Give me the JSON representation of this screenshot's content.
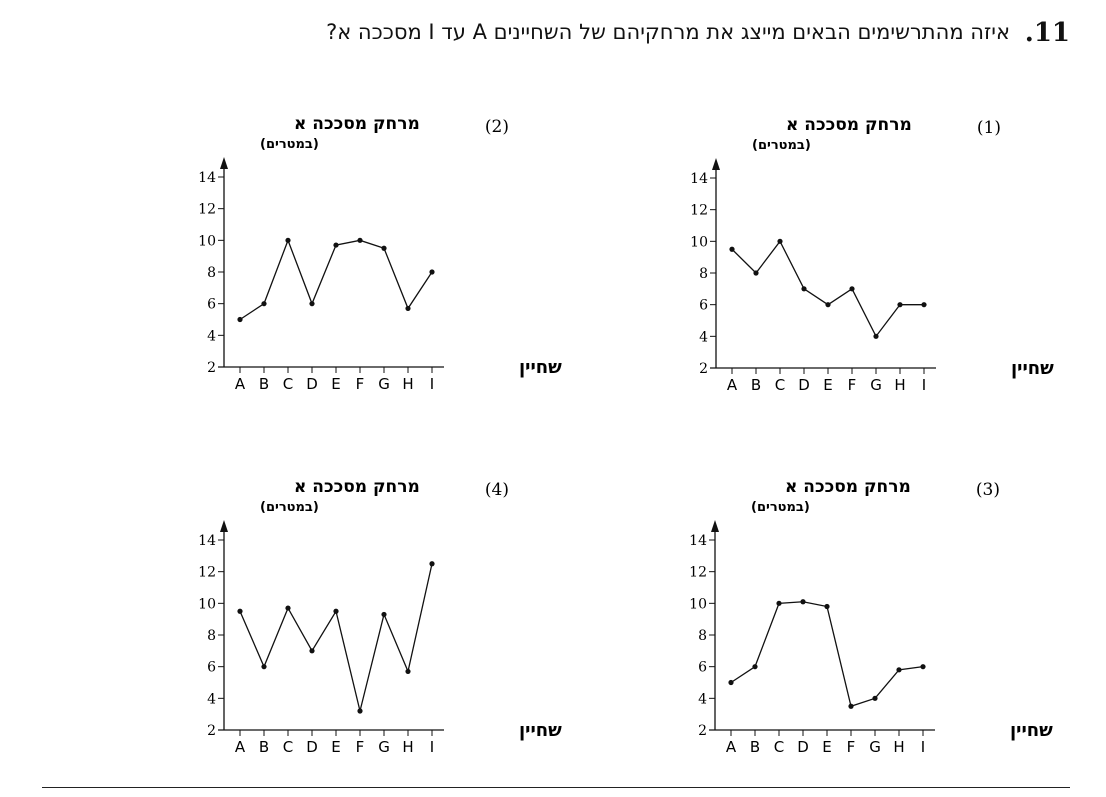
{
  "question": {
    "number": ".11",
    "text": "איזה מהתרשימים הבאים מייצג את מרחקיהם של השחיינים A עד I מסככה א?"
  },
  "chart_data": [
    {
      "type": "line",
      "option_label": "(1)",
      "ylabel": "מרחק מסככה א",
      "yunit": "(במטרים)",
      "xlabel": "שחיין",
      "categories": [
        "A",
        "B",
        "C",
        "D",
        "E",
        "F",
        "G",
        "H",
        "I"
      ],
      "values": [
        9.5,
        8,
        10,
        7,
        6,
        7,
        4,
        6,
        6
      ],
      "yticks": [
        2,
        4,
        6,
        8,
        10,
        12,
        14
      ],
      "ylim": [
        2,
        14
      ]
    },
    {
      "type": "line",
      "option_label": "(2)",
      "ylabel": "מרחק מסככה א",
      "yunit": "(במטרים)",
      "xlabel": "שחיין",
      "categories": [
        "A",
        "B",
        "C",
        "D",
        "E",
        "F",
        "G",
        "H",
        "I"
      ],
      "values": [
        5,
        6,
        10,
        6,
        9.7,
        10,
        9.5,
        5.7,
        8
      ],
      "yticks": [
        2,
        4,
        6,
        8,
        10,
        12,
        14
      ],
      "ylim": [
        2,
        14
      ]
    },
    {
      "type": "line",
      "option_label": "(3)",
      "ylabel": "מרחק מסככה א",
      "yunit": "(במטרים)",
      "xlabel": "שחיין",
      "categories": [
        "A",
        "B",
        "C",
        "D",
        "E",
        "F",
        "G",
        "H",
        "I"
      ],
      "values": [
        5,
        6,
        10,
        10.1,
        9.8,
        3.5,
        4,
        5.8,
        6
      ],
      "yticks": [
        2,
        4,
        6,
        8,
        10,
        12,
        14
      ],
      "ylim": [
        2,
        14
      ]
    },
    {
      "type": "line",
      "option_label": "(4)",
      "ylabel": "מרחק מסככה א",
      "yunit": "(במטרים)",
      "xlabel": "שחיין",
      "categories": [
        "A",
        "B",
        "C",
        "D",
        "E",
        "F",
        "G",
        "H",
        "I"
      ],
      "values": [
        9.5,
        6,
        9.7,
        7,
        9.5,
        3.2,
        9.3,
        5.7,
        12.5
      ],
      "yticks": [
        2,
        4,
        6,
        8,
        10,
        12,
        14
      ],
      "ylim": [
        2,
        14
      ]
    }
  ]
}
